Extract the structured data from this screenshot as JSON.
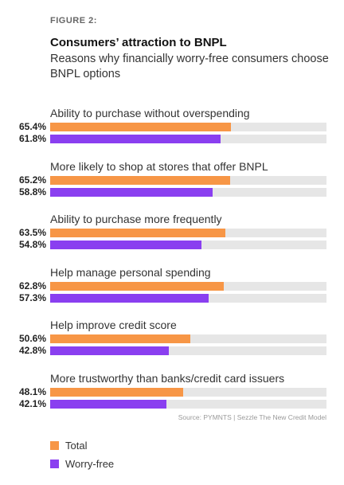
{
  "figure_label": "FIGURE 2:",
  "source": "Source: PYMNTS | Sezzle    The New Credit Model",
  "colors": {
    "total": "#f79646",
    "worry_free": "#8a3ff0",
    "track": "#e6e6e6"
  },
  "chart_data": {
    "type": "bar",
    "orientation": "horizontal",
    "title": "Consumers’ attraction to BNPL",
    "subtitle": "Reasons why financially worry-free consumers choose BNPL options",
    "xlim": [
      0,
      100
    ],
    "value_suffix": "%",
    "legend_position": "bottom-left",
    "categories": [
      "Ability to purchase without overspending",
      "More likely to shop at stores that offer BNPL",
      "Ability to purchase more frequently",
      "Help manage personal spending",
      "Help improve credit score",
      "More trustworthy than banks/credit card issuers"
    ],
    "series": [
      {
        "name": "Total",
        "color": "#f79646",
        "values": [
          65.4,
          65.2,
          63.5,
          62.8,
          50.6,
          48.1
        ]
      },
      {
        "name": "Worry-free",
        "color": "#8a3ff0",
        "values": [
          61.8,
          58.8,
          54.8,
          57.3,
          42.8,
          42.1
        ]
      }
    ]
  }
}
